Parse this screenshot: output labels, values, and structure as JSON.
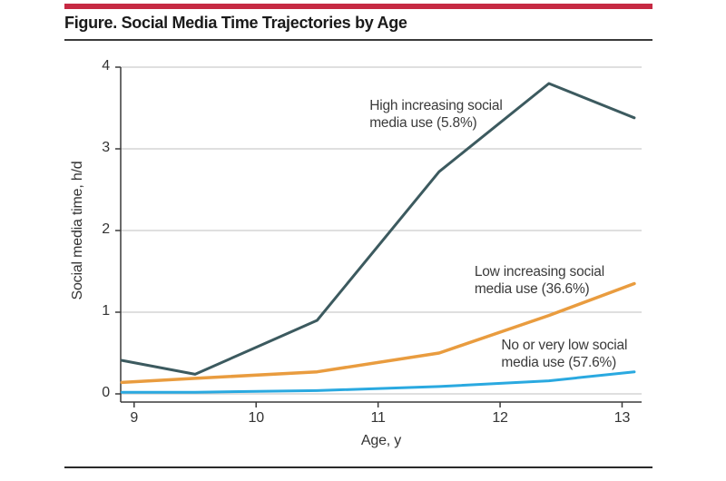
{
  "header": {
    "title": "Figure. Social Media Time Trajectories by Age"
  },
  "colors": {
    "accent_bar": "#c62943",
    "axis": "#3a3a3a",
    "grid": "#cccccc",
    "title_text": "#1a1a1a",
    "label_text": "#333333"
  },
  "chart_data": {
    "type": "line",
    "title": "Figure. Social Media Time Trajectories by Age",
    "xlabel": "Age, y",
    "ylabel": "Social media time, h/d",
    "xlim": [
      8.89,
      13.16
    ],
    "ylim": [
      0,
      4
    ],
    "x_ticks": [
      9,
      10,
      11,
      12,
      13
    ],
    "y_ticks": [
      0,
      1,
      2,
      3,
      4
    ],
    "grid": "horizontal",
    "legend_position": "inline-annotations",
    "series": [
      {
        "name": "High increasing social media use (5.8%)",
        "key": "high",
        "color": "#3c5a5f",
        "stroke_width": 3,
        "x": [
          8.9,
          9.5,
          10.5,
          11.5,
          12.4,
          13.1
        ],
        "y": [
          0.41,
          0.24,
          0.9,
          2.72,
          3.8,
          3.38
        ]
      },
      {
        "name": "Low increasing social media use (36.6%)",
        "key": "low",
        "color": "#e99c3f",
        "stroke_width": 3.5,
        "x": [
          8.9,
          9.5,
          10.5,
          11.5,
          12.4,
          13.1
        ],
        "y": [
          0.14,
          0.19,
          0.27,
          0.5,
          0.96,
          1.35
        ]
      },
      {
        "name": "No or very low social media use (57.6%)",
        "key": "none",
        "color": "#2aa9e0",
        "stroke_width": 3,
        "x": [
          8.9,
          9.5,
          10.5,
          11.5,
          12.4,
          13.1
        ],
        "y": [
          0.02,
          0.02,
          0.04,
          0.09,
          0.16,
          0.27
        ]
      }
    ],
    "annotations": [
      {
        "key": "high",
        "lines": [
          "High increasing social",
          "media use (5.8%)"
        ],
        "x": 10.93,
        "y": 3.63
      },
      {
        "key": "low",
        "lines": [
          "Low increasing social",
          "media use (36.6%)"
        ],
        "x": 11.79,
        "y": 1.6
      },
      {
        "key": "none",
        "lines": [
          "No or very low social",
          "media use (57.6%)"
        ],
        "x": 12.01,
        "y": 0.7
      }
    ]
  }
}
